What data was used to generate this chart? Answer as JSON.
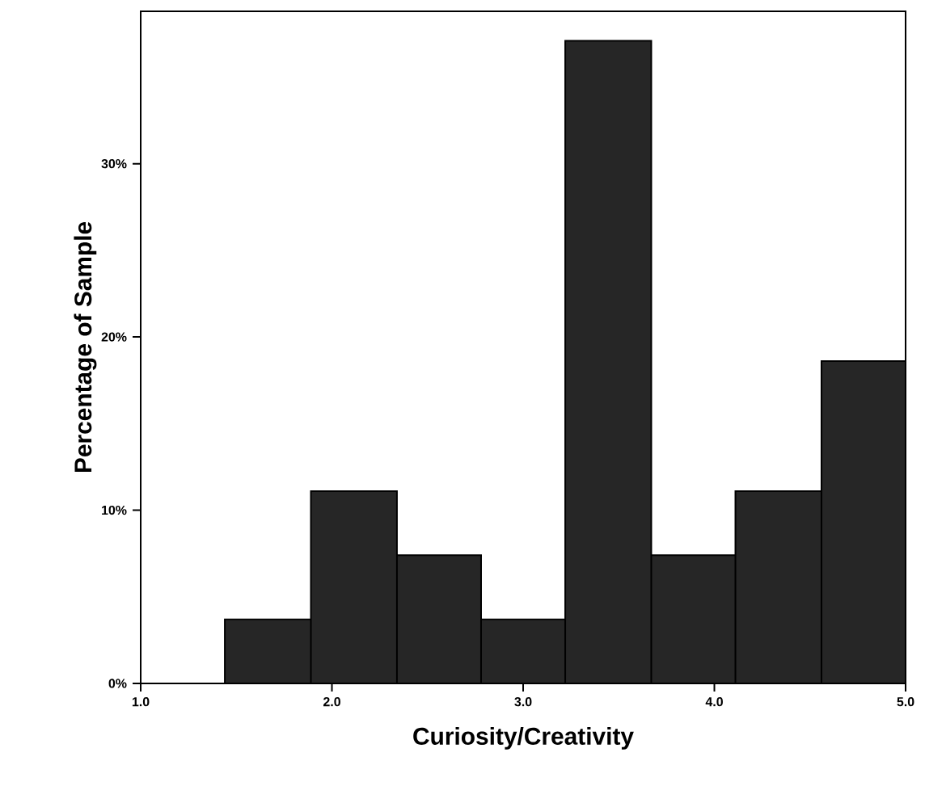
{
  "chart_data": {
    "type": "histogram",
    "xlabel": "Curiosity/Creativity",
    "ylabel": "Percentage of Sample",
    "bins": [
      1.44,
      1.89,
      2.34,
      2.78,
      3.22,
      3.67,
      4.11,
      4.56,
      5.0
    ],
    "values": [
      3.7,
      11.1,
      7.4,
      3.7,
      37.1,
      7.4,
      11.1,
      18.6
    ],
    "color": "#262626",
    "xlim": [
      1.0,
      5.0
    ],
    "xticks": [
      {
        "value": 1.0,
        "label": "1.0"
      },
      {
        "value": 2.0,
        "label": "2.0"
      },
      {
        "value": 3.0,
        "label": "3.0"
      },
      {
        "value": 4.0,
        "label": "4.0"
      },
      {
        "value": 5.0,
        "label": "5.0"
      }
    ],
    "ylim": [
      0,
      38.8
    ],
    "yticks": [
      {
        "value": 0,
        "label": "0%"
      },
      {
        "value": 10,
        "label": "10%"
      },
      {
        "value": 20,
        "label": "20%"
      },
      {
        "value": 30,
        "label": "30%"
      }
    ],
    "grid": false
  }
}
